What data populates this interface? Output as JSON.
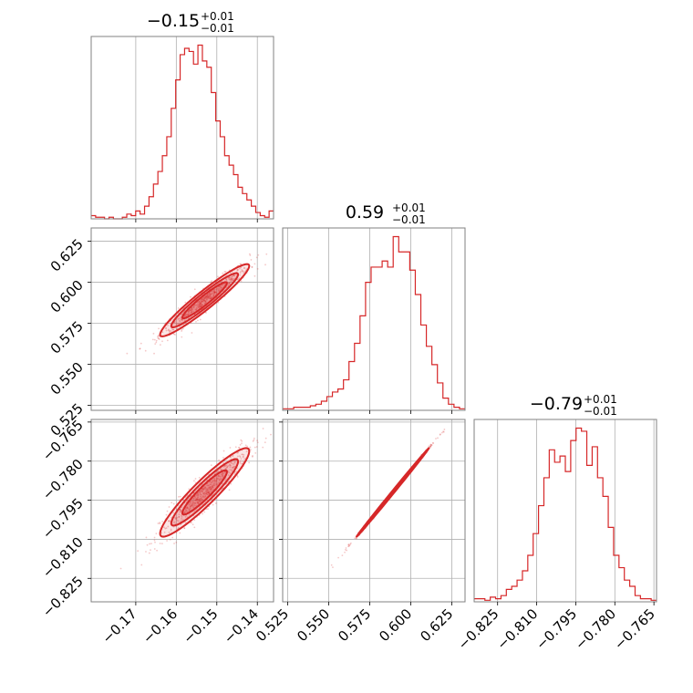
{
  "chart_data": {
    "type": "corner",
    "color": "#d62728",
    "parameters": [
      {
        "title_value": "−0.15",
        "title_upper": "+0.01",
        "title_lower": "−0.01",
        "range": [
          -0.181,
          -0.136
        ],
        "ticks": [
          -0.17,
          -0.16,
          -0.15,
          -0.14
        ],
        "tick_labels": [
          "−0.17",
          "−0.16",
          "−0.15",
          "−0.14"
        ],
        "hist_values": [
          2,
          1,
          1,
          0,
          1,
          0,
          0,
          1,
          3,
          2,
          5,
          3,
          8,
          14,
          22,
          30,
          40,
          52,
          70,
          88,
          104,
          108,
          106,
          98,
          110,
          100,
          96,
          80,
          62,
          52,
          40,
          34,
          28,
          20,
          16,
          12,
          8,
          4,
          2,
          1,
          5
        ]
      },
      {
        "title_value": "0.59",
        "title_upper": "+0.01",
        "title_lower": "−0.01",
        "range": [
          0.522,
          0.633
        ],
        "ticks": [
          0.525,
          0.55,
          0.575,
          0.6,
          0.625
        ],
        "tick_labels": [
          "0.525",
          "0.550",
          "0.575",
          "0.600",
          "0.625"
        ],
        "hist_values": [
          1,
          1,
          2,
          2,
          2,
          3,
          4,
          6,
          9,
          12,
          14,
          20,
          32,
          44,
          62,
          84,
          94,
          94,
          98,
          94,
          114,
          104,
          104,
          92,
          76,
          56,
          42,
          30,
          18,
          8,
          4,
          2,
          1
        ]
      },
      {
        "title_value": "−0.79",
        "title_upper": "+0.01",
        "title_lower": "−0.01",
        "range": [
          -0.834,
          -0.764
        ],
        "ticks": [
          -0.825,
          -0.81,
          -0.795,
          -0.78,
          -0.765
        ],
        "tick_labels": [
          "−0.825",
          "−0.810",
          "−0.795",
          "−0.780",
          "−0.765"
        ],
        "hist_values": [
          2,
          2,
          1,
          3,
          2,
          4,
          8,
          10,
          14,
          20,
          30,
          44,
          62,
          80,
          98,
          90,
          94,
          84,
          104,
          112,
          110,
          88,
          100,
          80,
          68,
          48,
          30,
          22,
          14,
          10,
          4,
          2,
          2,
          1
        ]
      }
    ],
    "pairs": [
      {
        "x_param": 0,
        "y_param": 1,
        "mean": [
          -0.153,
          0.589
        ],
        "sd": [
          0.0055,
          0.011
        ],
        "correlation": 0.95
      },
      {
        "x_param": 0,
        "y_param": 2,
        "mean": [
          -0.153,
          -0.792
        ],
        "sd": [
          0.0055,
          0.0085
        ],
        "correlation": 0.93
      },
      {
        "x_param": 1,
        "y_param": 2,
        "mean": [
          0.589,
          -0.792
        ],
        "sd": [
          0.011,
          0.0085
        ],
        "correlation": 0.999
      }
    ],
    "grid": true
  }
}
